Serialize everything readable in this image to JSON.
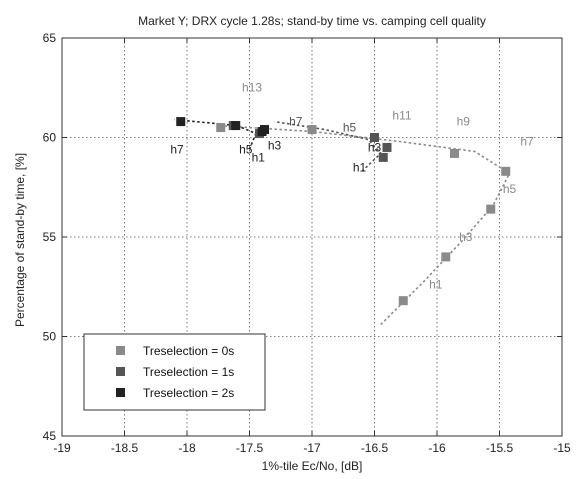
{
  "chart_data": {
    "type": "scatter",
    "title": "Market Y; DRX cycle 1.28s; stand-by time vs. camping cell quality",
    "xlabel": "1%-tile Ec/No, [dB]",
    "ylabel": "Percentage of stand-by time, [%]",
    "xlim": [
      -19,
      -15
    ],
    "ylim": [
      45,
      65
    ],
    "xticks": [
      -19,
      -18.5,
      -18,
      -17.5,
      -17,
      -16.5,
      -16,
      -15.5,
      -15
    ],
    "yticks": [
      45,
      50,
      55,
      60,
      65
    ],
    "xtick_labels": [
      "-19",
      "-18.5",
      "-18",
      "-17.5",
      "-17",
      "-16.5",
      "-16",
      "-15.5",
      "-15"
    ],
    "ytick_labels": [
      "45",
      "50",
      "55",
      "60",
      "65"
    ],
    "grid": true,
    "legend_position": "bottom-left",
    "series": [
      {
        "name": "Treselection = 0s",
        "color": "#8a8a8a",
        "points": [
          {
            "x": -16.27,
            "y": 51.8
          },
          {
            "x": -15.93,
            "y": 54.0
          },
          {
            "x": -15.57,
            "y": 56.4
          },
          {
            "x": -15.45,
            "y": 58.3
          },
          {
            "x": -15.86,
            "y": 59.2
          },
          {
            "x": -16.5,
            "y": 60.0
          },
          {
            "x": -17.0,
            "y": 60.4
          },
          {
            "x": -17.73,
            "y": 60.5
          }
        ],
        "trend": [
          {
            "x": -16.45,
            "y": 50.6
          },
          {
            "x": -16.1,
            "y": 52.8
          },
          {
            "x": -15.8,
            "y": 54.8
          },
          {
            "x": -15.55,
            "y": 56.6
          },
          {
            "x": -15.42,
            "y": 58.2
          },
          {
            "x": -15.7,
            "y": 59.3
          },
          {
            "x": -16.3,
            "y": 59.8
          },
          {
            "x": -17.0,
            "y": 60.3
          },
          {
            "x": -17.75,
            "y": 60.6
          }
        ]
      },
      {
        "name": "Treselection = 1s",
        "color": "#555555",
        "points": [
          {
            "x": -16.43,
            "y": 59.0
          },
          {
            "x": -16.4,
            "y": 59.5
          },
          {
            "x": -16.5,
            "y": 60.0
          },
          {
            "x": -17.42,
            "y": 60.2
          },
          {
            "x": -17.63,
            "y": 60.6
          }
        ],
        "trend": [
          {
            "x": -16.6,
            "y": 58.3
          },
          {
            "x": -16.45,
            "y": 59.2
          },
          {
            "x": -16.55,
            "y": 59.9
          },
          {
            "x": -16.9,
            "y": 60.4
          },
          {
            "x": -17.3,
            "y": 60.8
          }
        ]
      },
      {
        "name": "Treselection = 2s",
        "color": "#222222",
        "points": [
          {
            "x": -17.38,
            "y": 60.4
          },
          {
            "x": -17.4,
            "y": 60.3
          },
          {
            "x": -17.61,
            "y": 60.6
          },
          {
            "x": -18.05,
            "y": 60.8
          }
        ],
        "trend": [
          {
            "x": -17.5,
            "y": 59.4
          },
          {
            "x": -17.45,
            "y": 60.2
          },
          {
            "x": -17.6,
            "y": 60.6
          },
          {
            "x": -18.1,
            "y": 60.9
          }
        ]
      }
    ],
    "annotations": [
      {
        "text": "h13",
        "x": -17.48,
        "y": 62.3,
        "color": "#8a8a8a"
      },
      {
        "text": "h7",
        "x": -18.08,
        "y": 59.2,
        "color": "#222222"
      },
      {
        "text": "h5",
        "x": -17.53,
        "y": 59.2,
        "color": "#222222"
      },
      {
        "text": "h3",
        "x": -17.3,
        "y": 59.4,
        "color": "#222222"
      },
      {
        "text": "h1",
        "x": -17.43,
        "y": 58.8,
        "color": "#222222"
      },
      {
        "text": "h7",
        "x": -17.13,
        "y": 60.6,
        "color": "#555555"
      },
      {
        "text": "h5",
        "x": -16.7,
        "y": 60.3,
        "color": "#555555"
      },
      {
        "text": "h11",
        "x": -16.28,
        "y": 60.9,
        "color": "#8a8a8a"
      },
      {
        "text": "h3",
        "x": -16.5,
        "y": 59.3,
        "color": "#222222"
      },
      {
        "text": "h1",
        "x": -16.62,
        "y": 58.3,
        "color": "#222222"
      },
      {
        "text": "h9",
        "x": -15.79,
        "y": 60.6,
        "color": "#8a8a8a"
      },
      {
        "text": "h7",
        "x": -15.28,
        "y": 59.6,
        "color": "#8a8a8a"
      },
      {
        "text": "h5",
        "x": -15.42,
        "y": 57.2,
        "color": "#8a8a8a"
      },
      {
        "text": "h3",
        "x": -15.77,
        "y": 54.8,
        "color": "#8a8a8a"
      },
      {
        "text": "h1",
        "x": -16.01,
        "y": 52.4,
        "color": "#8a8a8a"
      }
    ]
  }
}
